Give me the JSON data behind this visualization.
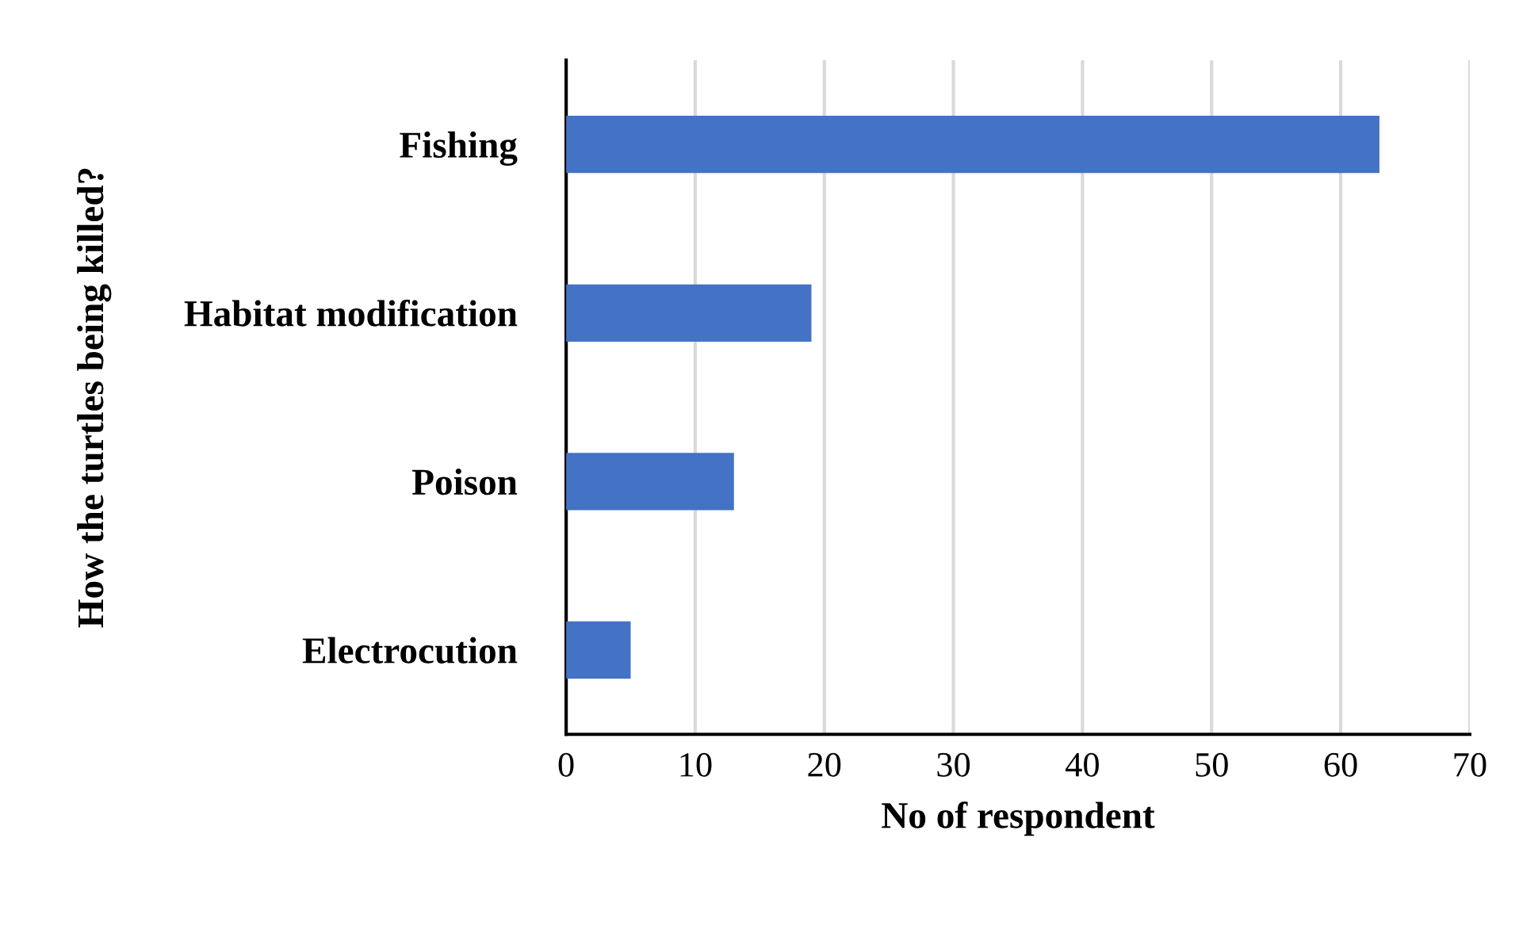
{
  "chart_data": {
    "type": "bar",
    "orientation": "horizontal",
    "ylabel": "How the turtles being killed?",
    "xlabel": "No of respondent",
    "categories": [
      "Fishing",
      "Habitat modification",
      "Poison",
      "Electrocution"
    ],
    "values": [
      63,
      19,
      13,
      5
    ],
    "color": "#4472c4",
    "xlim": [
      0,
      70
    ],
    "xticks": [
      0,
      10,
      20,
      30,
      40,
      50,
      60,
      70
    ],
    "grid": "x",
    "legend": false
  }
}
